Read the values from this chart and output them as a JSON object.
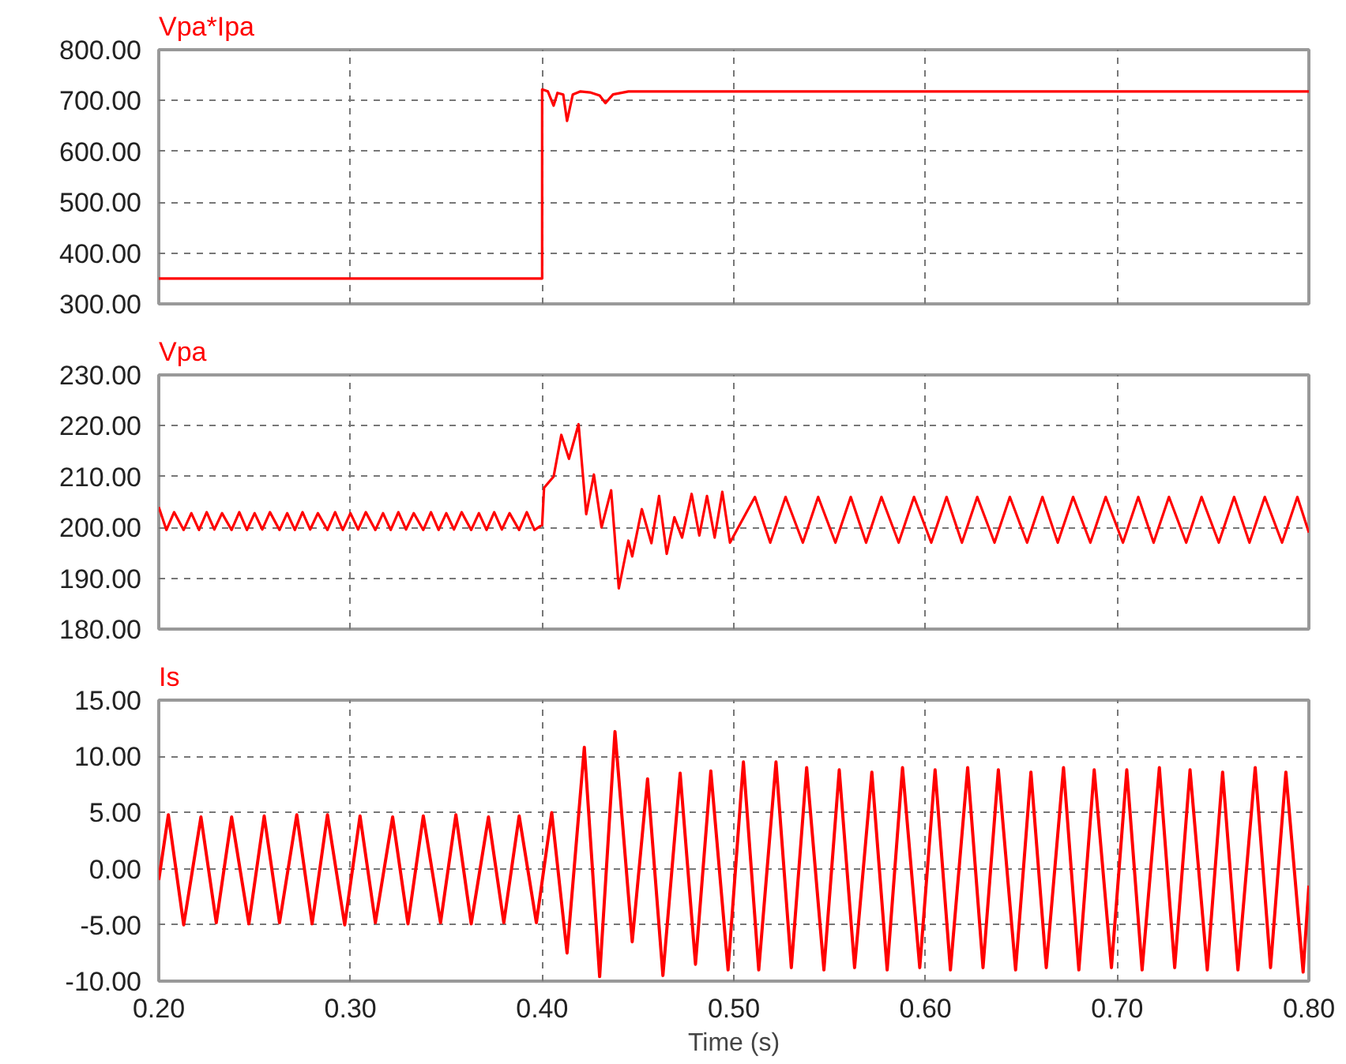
{
  "chart_data": [
    {
      "type": "line",
      "title": "Vpa*Ipa",
      "xlim": [
        0.2,
        0.8
      ],
      "ylim": [
        300,
        800
      ],
      "xticks": [
        {
          "value": 0.2,
          "label": null
        },
        {
          "value": 0.3,
          "label": null
        },
        {
          "value": 0.4,
          "label": null
        },
        {
          "value": 0.5,
          "label": null
        },
        {
          "value": 0.6,
          "label": null
        },
        {
          "value": 0.7,
          "label": null
        },
        {
          "value": 0.8,
          "label": null
        }
      ],
      "yticks": [
        {
          "value": 300,
          "label": "300.00"
        },
        {
          "value": 400,
          "label": "400.00"
        },
        {
          "value": 500,
          "label": "500.00"
        },
        {
          "value": 600,
          "label": "600.00"
        },
        {
          "value": 700,
          "label": "700.00"
        },
        {
          "value": 800,
          "label": "800.00"
        }
      ],
      "grid": true,
      "tick_labels": "y",
      "series": [
        {
          "color": "#ff0000",
          "x": [
            0.2,
            0.4,
            0.4,
            0.403,
            0.406,
            0.408,
            0.411,
            0.413,
            0.416,
            0.42,
            0.425,
            0.43,
            0.433,
            0.437,
            0.445,
            0.8
          ],
          "values": [
            350,
            350,
            722,
            718,
            690,
            715,
            712,
            660,
            712,
            718,
            716,
            710,
            695,
            712,
            718,
            718
          ]
        }
      ]
    },
    {
      "type": "line",
      "title": "Vpa",
      "xlim": [
        0.2,
        0.8
      ],
      "ylim": [
        180,
        230
      ],
      "xticks": [
        {
          "value": 0.2,
          "label": null
        },
        {
          "value": 0.3,
          "label": null
        },
        {
          "value": 0.4,
          "label": null
        },
        {
          "value": 0.5,
          "label": null
        },
        {
          "value": 0.6,
          "label": null
        },
        {
          "value": 0.7,
          "label": null
        },
        {
          "value": 0.8,
          "label": null
        }
      ],
      "yticks": [
        {
          "value": 180,
          "label": "180.00"
        },
        {
          "value": 190,
          "label": "190.00"
        },
        {
          "value": 200,
          "label": "200.00"
        },
        {
          "value": 210,
          "label": "210.00"
        },
        {
          "value": 220,
          "label": "220.00"
        },
        {
          "value": 230,
          "label": "230.00"
        }
      ],
      "grid": true,
      "tick_labels": "y",
      "series": [
        {
          "color": "#ff0000",
          "x": [
            0.2,
            0.204,
            0.208,
            0.213,
            0.217,
            0.221,
            0.225,
            0.229,
            0.233,
            0.238,
            0.242,
            0.246,
            0.25,
            0.254,
            0.258,
            0.263,
            0.267,
            0.271,
            0.275,
            0.279,
            0.283,
            0.288,
            0.292,
            0.296,
            0.3,
            0.304,
            0.308,
            0.313,
            0.317,
            0.321,
            0.325,
            0.329,
            0.333,
            0.338,
            0.342,
            0.346,
            0.35,
            0.354,
            0.358,
            0.363,
            0.367,
            0.371,
            0.375,
            0.379,
            0.383,
            0.388,
            0.392,
            0.396,
            0.4,
            0.401,
            0.406,
            0.41,
            0.414,
            0.419,
            0.423,
            0.427,
            0.431,
            0.436,
            0.44,
            0.445,
            0.447,
            0.452,
            0.457,
            0.461,
            0.465,
            0.469,
            0.473,
            0.478,
            0.482,
            0.486,
            0.49,
            0.494,
            0.498,
            0.511,
            0.519,
            0.527,
            0.536,
            0.544,
            0.553,
            0.561,
            0.569,
            0.577,
            0.586,
            0.594,
            0.603,
            0.611,
            0.619,
            0.627,
            0.636,
            0.644,
            0.653,
            0.661,
            0.669,
            0.677,
            0.686,
            0.694,
            0.703,
            0.711,
            0.719,
            0.727,
            0.736,
            0.744,
            0.753,
            0.761,
            0.769,
            0.777,
            0.786,
            0.794,
            0.8
          ],
          "values": [
            204,
            199.5,
            203,
            199.5,
            202.8,
            199.5,
            203,
            199.6,
            202.8,
            199.5,
            203,
            199.5,
            202.8,
            199.6,
            203,
            199.5,
            202.8,
            199.5,
            203,
            199.6,
            202.8,
            199.5,
            203,
            199.5,
            202.8,
            199.6,
            203,
            199.5,
            202.8,
            199.5,
            203,
            199.6,
            202.8,
            199.5,
            203,
            199.5,
            202.8,
            199.6,
            203,
            199.5,
            202.8,
            199.5,
            203,
            199.6,
            202.8,
            199.5,
            203,
            199.5,
            200.5,
            207.8,
            210,
            218.2,
            213.5,
            220.3,
            202.6,
            210.4,
            200,
            207.3,
            188,
            197.4,
            194.3,
            203.6,
            196.9,
            206.2,
            194.8,
            202,
            198,
            206.6,
            198.4,
            206.2,
            198,
            207,
            197,
            206,
            197,
            206,
            197,
            206,
            197,
            206,
            197,
            206,
            197,
            206,
            197,
            206,
            197,
            206,
            197,
            206,
            197,
            206,
            197,
            206,
            197,
            206,
            197,
            206,
            197,
            206,
            197,
            206,
            197,
            206,
            197,
            206,
            197,
            206,
            199
          ]
        }
      ]
    },
    {
      "type": "line",
      "title": "Is",
      "xlabel": "Time (s)",
      "xlim": [
        0.2,
        0.8
      ],
      "ylim": [
        -10,
        15
      ],
      "xticks": [
        {
          "value": 0.2,
          "label": "0.20"
        },
        {
          "value": 0.3,
          "label": "0.30"
        },
        {
          "value": 0.4,
          "label": "0.40"
        },
        {
          "value": 0.5,
          "label": "0.50"
        },
        {
          "value": 0.6,
          "label": "0.60"
        },
        {
          "value": 0.7,
          "label": "0.70"
        },
        {
          "value": 0.8,
          "label": "0.80"
        }
      ],
      "yticks": [
        {
          "value": -10,
          "label": "-10.00"
        },
        {
          "value": -5,
          "label": "-5.00"
        },
        {
          "value": 0,
          "label": "0.00"
        },
        {
          "value": 5,
          "label": "5.00"
        },
        {
          "value": 10,
          "label": "10.00"
        },
        {
          "value": 15,
          "label": "15.00"
        }
      ],
      "grid": true,
      "series": [
        {
          "color": "#ff0000",
          "x": [
            0.2,
            0.205,
            0.213,
            0.222,
            0.23,
            0.238,
            0.247,
            0.255,
            0.263,
            0.272,
            0.28,
            0.288,
            0.297,
            0.305,
            0.313,
            0.322,
            0.33,
            0.338,
            0.347,
            0.355,
            0.363,
            0.372,
            0.38,
            0.388,
            0.397,
            0.405,
            0.413,
            0.422,
            0.43,
            0.438,
            0.447,
            0.455,
            0.463,
            0.472,
            0.48,
            0.488,
            0.497,
            0.505,
            0.513,
            0.522,
            0.53,
            0.538,
            0.547,
            0.555,
            0.563,
            0.572,
            0.58,
            0.588,
            0.597,
            0.605,
            0.613,
            0.622,
            0.63,
            0.638,
            0.647,
            0.655,
            0.663,
            0.672,
            0.68,
            0.688,
            0.697,
            0.705,
            0.713,
            0.722,
            0.73,
            0.738,
            0.747,
            0.755,
            0.763,
            0.772,
            0.78,
            0.788,
            0.797,
            0.8
          ],
          "values": [
            -1.0,
            4.8,
            -5.0,
            4.6,
            -4.8,
            4.6,
            -4.9,
            4.7,
            -4.8,
            4.8,
            -4.9,
            4.8,
            -5.0,
            4.7,
            -4.8,
            4.6,
            -4.9,
            4.7,
            -4.8,
            4.8,
            -4.9,
            4.6,
            -4.8,
            4.7,
            -4.8,
            5.0,
            -7.5,
            10.8,
            -9.6,
            12.2,
            -6.5,
            8.0,
            -9.5,
            8.5,
            -8.5,
            8.7,
            -9.0,
            9.5,
            -9.0,
            9.5,
            -8.8,
            9.0,
            -9.0,
            8.8,
            -8.8,
            8.6,
            -9.0,
            9.0,
            -8.8,
            8.8,
            -9.0,
            9.0,
            -8.8,
            8.8,
            -9.0,
            8.6,
            -8.8,
            9.0,
            -9.0,
            8.8,
            -8.8,
            8.8,
            -9.0,
            9.0,
            -8.8,
            8.8,
            -9.0,
            8.6,
            -9.0,
            9.0,
            -8.8,
            8.6,
            -9.2,
            -1.5
          ]
        }
      ]
    }
  ]
}
